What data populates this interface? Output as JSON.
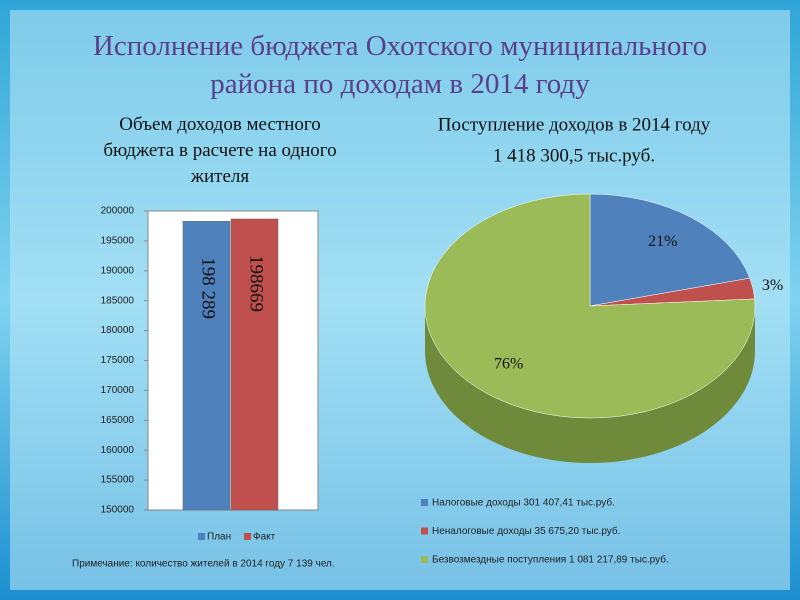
{
  "title": "Исполнение бюджета Охотского муниципального района по доходам в 2014 году",
  "chart_data": [
    {
      "type": "bar",
      "title": "Объем доходов местного бюджета в расчете на одного жителя (тыс.руб.)",
      "categories": [
        null
      ],
      "series": [
        {
          "name": "План",
          "color": "#4f81bd",
          "values": [
            198289
          ],
          "value_labels": [
            "198 289"
          ]
        },
        {
          "name": "Факт",
          "color": "#c0504d",
          "values": [
            198669
          ]
        }
      ],
      "ylim": [
        150000,
        200000
      ],
      "yticks": [
        150000,
        155000,
        160000,
        165000,
        170000,
        175000,
        180000,
        185000,
        190000,
        195000,
        200000
      ],
      "grid": false,
      "note": "Примечание: количество жителей в 2014 году 7 139 чел."
    },
    {
      "type": "pie",
      "title": "Поступление доходов в 2014 году",
      "subtitle": "1 418 300,5 тыс.руб.",
      "categories": [
        "Налоговые доходы 301 407,41 тыс.руб.",
        "Неналоговые доходы 35 675,20 тыс.руб.",
        "Безвозмездные поступления 1 081 217,89 тыс.руб."
      ],
      "values": [
        21,
        3,
        76
      ],
      "value_labels": [
        "21%",
        "3%",
        "76%"
      ],
      "colors": [
        "#4f81bd",
        "#c0504d",
        "#9bbb59"
      ]
    }
  ]
}
